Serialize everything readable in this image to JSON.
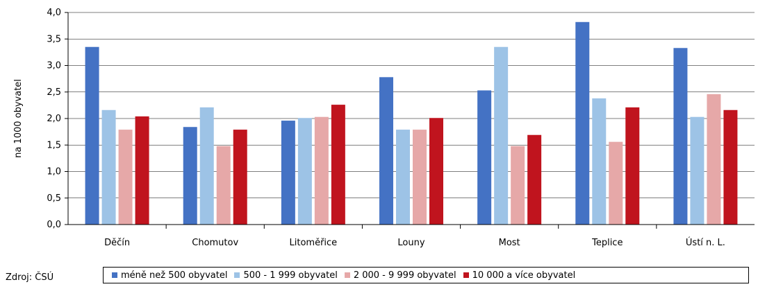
{
  "chart_data": {
    "type": "bar",
    "ylabel": "na 1000 obyvatel",
    "ylim": [
      0,
      4
    ],
    "yticks": [
      "0,0",
      "0,5",
      "1,0",
      "1,5",
      "2,0",
      "2,5",
      "3,0",
      "3,5",
      "4,0"
    ],
    "grid": true,
    "legend_position": "bottom",
    "categories": [
      "Děčín",
      "Chomutov",
      "Litoměřice",
      "Louny",
      "Most",
      "Teplice",
      "Ústí n. L."
    ],
    "series": [
      {
        "name": "méně než 500 obyvatel",
        "color": "#4472c4",
        "values": [
          3.35,
          1.84,
          1.96,
          2.78,
          2.53,
          3.82,
          3.33
        ]
      },
      {
        "name": "500 - 1 999 obyvatel",
        "color": "#9dc3e6",
        "values": [
          2.16,
          2.21,
          2.01,
          1.79,
          3.35,
          2.38,
          2.03
        ]
      },
      {
        "name": "2 000 - 9 999 obyvatel",
        "color": "#e6a8a8",
        "values": [
          1.79,
          1.48,
          2.03,
          1.79,
          1.48,
          1.56,
          2.46
        ]
      },
      {
        "name": "10 000 a více obyvatel",
        "color": "#c0141e",
        "values": [
          2.04,
          1.79,
          2.26,
          2.01,
          1.69,
          2.21,
          2.16
        ]
      }
    ]
  },
  "source": "Zdroj: ČSÚ"
}
